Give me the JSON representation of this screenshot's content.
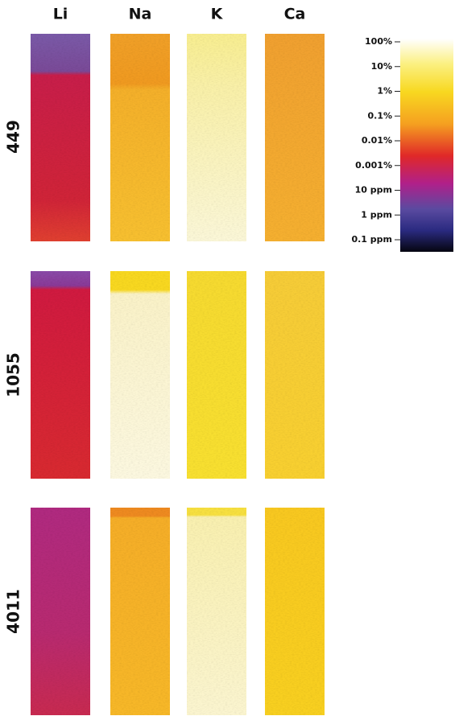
{
  "columns": [
    "Li",
    "Na",
    "K",
    "Ca"
  ],
  "rows": [
    "449",
    "1055",
    "4011"
  ],
  "colorbar": {
    "ticks": [
      "100%",
      "10%",
      "1%",
      "0.1%",
      "0.01%",
      "0.001%",
      "10 ppm",
      "1 ppm",
      "0.1 ppm"
    ]
  }
}
